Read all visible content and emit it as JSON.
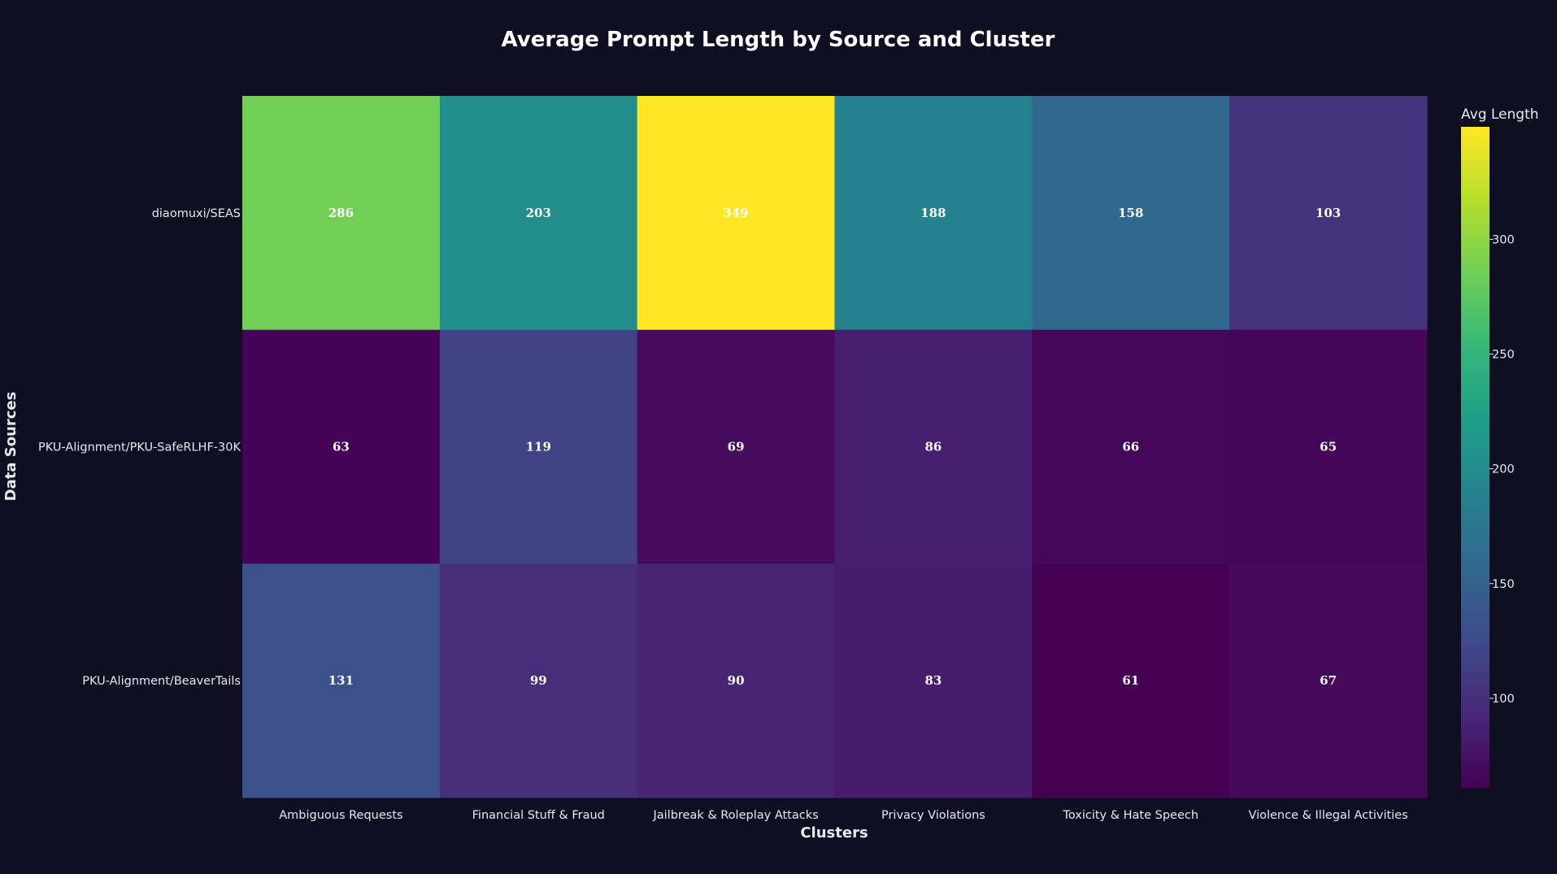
{
  "chart_data": {
    "type": "heatmap",
    "title": "Average Prompt Length by Source and Cluster",
    "xlabel": "Clusters",
    "ylabel": "Data Sources",
    "x_categories": [
      "Ambiguous Requests",
      "Financial Stuff & Fraud",
      "Jailbreak & Roleplay Attacks",
      "Privacy Violations",
      "Toxicity & Hate Speech",
      "Violence & Illegal Activities"
    ],
    "y_categories": [
      "diaomuxi/SEAS",
      "PKU-Alignment/PKU-SafeRLHF-30K",
      "PKU-Alignment/BeaverTails"
    ],
    "values": [
      [
        286,
        203,
        349,
        188,
        158,
        103
      ],
      [
        63,
        119,
        69,
        86,
        66,
        65
      ],
      [
        131,
        99,
        90,
        83,
        61,
        67
      ]
    ],
    "colorbar": {
      "title": "Avg Length",
      "colorscale": "viridis",
      "range": [
        61,
        349
      ],
      "ticks": [
        100,
        150,
        200,
        250,
        300
      ]
    }
  }
}
